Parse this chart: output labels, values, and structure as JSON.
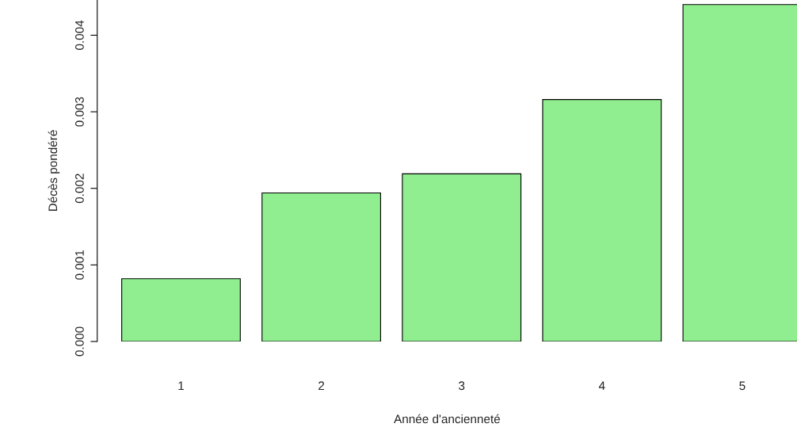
{
  "chart_data": {
    "type": "bar",
    "xlabel": "Année d'ancienneté",
    "ylabel": "Décès pondéré",
    "categories": [
      "1",
      "2",
      "3",
      "4",
      "5"
    ],
    "values": [
      0.00082,
      0.00194,
      0.00219,
      0.00316,
      0.0044
    ],
    "color": "#90ee90",
    "ylim": [
      0,
      0.00446
    ],
    "yticks": [
      {
        "value": 0,
        "label": "0.000"
      },
      {
        "value": 0.001,
        "label": "0.001"
      },
      {
        "value": 0.002,
        "label": "0.002"
      },
      {
        "value": 0.003,
        "label": "0.003"
      },
      {
        "value": 0.004,
        "label": "0.004"
      }
    ],
    "grid": false
  }
}
